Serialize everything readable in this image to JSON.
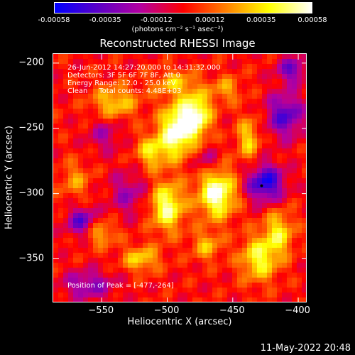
{
  "colorbar": {
    "tick_labels": [
      "-0.00058",
      "-0.00035",
      "-0.00012",
      "0.00012",
      "0.00035",
      "0.00058"
    ],
    "tick_values": [
      -0.00058,
      -0.00035,
      -0.00012,
      0.00012,
      0.00035,
      0.00058
    ],
    "range": [
      -0.00058,
      0.00058
    ],
    "units": "(photons cm⁻² s⁻¹ asec⁻²)",
    "colors": [
      "#0000ff",
      "#5a00c8",
      "#b400a0",
      "#ff0000",
      "#ff8000",
      "#ffff00",
      "#ffffff"
    ]
  },
  "title": "Reconstructed RHESSI Image",
  "info_lines": [
    "26-Jun-2012 14:27:20.000 to 14:31:32.000",
    "Detectors: 3F 5F 6F 7F 8F, Att 0",
    "Energy Range: 12.0 - 25.0 keV",
    "Clean     Total counts: 4.48E+03"
  ],
  "peak": {
    "label": "Position of Peak = [-477,-264]",
    "x": -477,
    "y": -264
  },
  "axes": {
    "xlabel": "Heliocentric X (arcsec)",
    "ylabel": "Heliocentric Y (arcsec)",
    "xrange": [
      -587,
      -393
    ],
    "yrange": [
      -384,
      -193
    ],
    "xticks": [
      {
        "value": -550,
        "label": "−550"
      },
      {
        "value": -500,
        "label": "−500"
      },
      {
        "value": -450,
        "label": "−450"
      },
      {
        "value": -400,
        "label": "−400"
      }
    ],
    "yticks": [
      {
        "value": -200,
        "label": "−200"
      },
      {
        "value": -250,
        "label": "−250"
      },
      {
        "value": -300,
        "label": "−300"
      },
      {
        "value": -350,
        "label": "−350"
      }
    ]
  },
  "image_blobs": [
    {
      "x": -493,
      "y": -252,
      "amp": 1.0,
      "sx": 9,
      "sy": 14
    },
    {
      "x": -478,
      "y": -240,
      "amp": 0.95,
      "sx": 8,
      "sy": 12
    },
    {
      "x": -462,
      "y": -300,
      "amp": 1.0,
      "sx": 10,
      "sy": 13
    },
    {
      "x": -500,
      "y": -310,
      "amp": 0.85,
      "sx": 9,
      "sy": 13
    },
    {
      "x": -512,
      "y": -268,
      "amp": 0.6,
      "sx": 8,
      "sy": 9
    },
    {
      "x": -540,
      "y": -230,
      "amp": 0.55,
      "sx": 12,
      "sy": 9
    },
    {
      "x": -552,
      "y": -330,
      "amp": 0.5,
      "sx": 9,
      "sy": 7
    },
    {
      "x": -520,
      "y": -350,
      "amp": 0.55,
      "sx": 10,
      "sy": 7
    },
    {
      "x": -430,
      "y": -350,
      "amp": 0.7,
      "sx": 10,
      "sy": 12
    },
    {
      "x": -415,
      "y": -330,
      "amp": 0.6,
      "sx": 8,
      "sy": 12
    },
    {
      "x": -438,
      "y": -258,
      "amp": 0.55,
      "sx": 6,
      "sy": 12
    },
    {
      "x": -495,
      "y": -215,
      "amp": 0.45,
      "sx": 12,
      "sy": 7
    },
    {
      "x": -470,
      "y": -340,
      "amp": 0.45,
      "sx": 8,
      "sy": 8
    },
    {
      "x": -455,
      "y": -220,
      "amp": 0.4,
      "sx": 8,
      "sy": 7
    },
    {
      "x": -570,
      "y": -290,
      "amp": 0.35,
      "sx": 8,
      "sy": 10
    },
    {
      "x": -560,
      "y": -370,
      "amp": -0.5,
      "sx": 14,
      "sy": 8
    },
    {
      "x": -565,
      "y": -322,
      "amp": -0.7,
      "sx": 8,
      "sy": 8
    },
    {
      "x": -425,
      "y": -292,
      "amp": -0.9,
      "sx": 10,
      "sy": 10
    },
    {
      "x": -410,
      "y": -240,
      "amp": -0.7,
      "sx": 10,
      "sy": 12
    },
    {
      "x": -405,
      "y": -205,
      "amp": -0.6,
      "sx": 8,
      "sy": 7
    },
    {
      "x": -530,
      "y": -300,
      "amp": -0.4,
      "sx": 10,
      "sy": 12
    },
    {
      "x": -470,
      "y": -275,
      "amp": -0.35,
      "sx": 7,
      "sy": 7
    },
    {
      "x": -548,
      "y": -255,
      "amp": -0.35,
      "sx": 9,
      "sy": 9
    }
  ]
}
